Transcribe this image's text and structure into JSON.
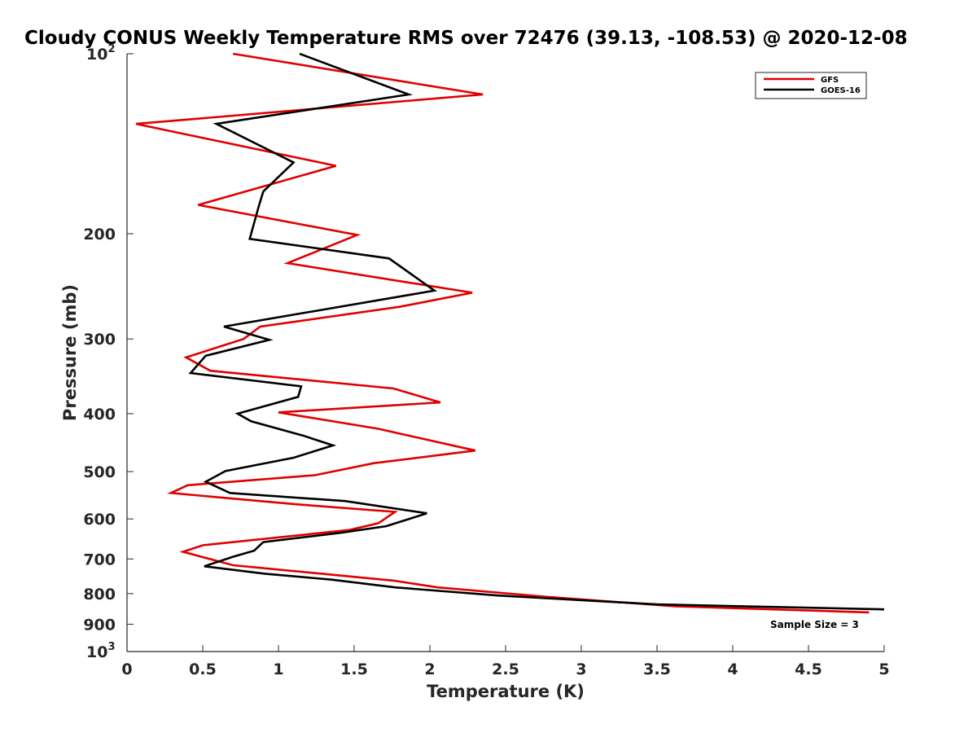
{
  "chart_data": {
    "type": "line",
    "title": "Cloudy CONUS Weekly Temperature RMS over 72476 (39.13, -108.53) @ 2020-12-08",
    "xlabel": "Temperature (K)",
    "ylabel": "Pressure (mb)",
    "xlim": [
      0,
      5
    ],
    "ylim": [
      100,
      1000
    ],
    "y_scale": "log",
    "y_reversed": true,
    "x_ticks": [
      "0",
      "0.5",
      "1",
      "1.5",
      "2",
      "2.5",
      "3",
      "3.5",
      "4",
      "4.5",
      "5"
    ],
    "y_ticks": [
      {
        "value": 100,
        "label": "10",
        "exp": "2"
      },
      {
        "value": 200,
        "label": "200"
      },
      {
        "value": 300,
        "label": "300"
      },
      {
        "value": 400,
        "label": "400"
      },
      {
        "value": 500,
        "label": "500"
      },
      {
        "value": 600,
        "label": "600"
      },
      {
        "value": 700,
        "label": "700"
      },
      {
        "value": 800,
        "label": "800"
      },
      {
        "value": 900,
        "label": "900"
      },
      {
        "value": 1000,
        "label": "10",
        "exp": "3"
      }
    ],
    "grid": false,
    "legend_position": "top-right",
    "annotation": "Sample Size = 3",
    "series": [
      {
        "name": "GFS",
        "color": "#e00000",
        "points": [
          [
            0.7,
            100
          ],
          [
            2.35,
            117
          ],
          [
            0.06,
            131
          ],
          [
            1.38,
            154
          ],
          [
            0.47,
            179
          ],
          [
            1.52,
            201
          ],
          [
            1.06,
            224
          ],
          [
            2.28,
            251
          ],
          [
            1.8,
            265
          ],
          [
            0.88,
            286
          ],
          [
            0.77,
            300
          ],
          [
            0.39,
            322
          ],
          [
            0.55,
            339
          ],
          [
            1.76,
            363
          ],
          [
            2.07,
            383
          ],
          [
            1.0,
            398
          ],
          [
            1.66,
            424
          ],
          [
            2.3,
            461
          ],
          [
            1.63,
            484
          ],
          [
            1.24,
            507
          ],
          [
            0.4,
            527
          ],
          [
            0.29,
            543
          ],
          [
            1.11,
            567
          ],
          [
            1.77,
            584
          ],
          [
            1.66,
            610
          ],
          [
            1.47,
            626
          ],
          [
            0.5,
            664
          ],
          [
            0.37,
            681
          ],
          [
            0.7,
            717
          ],
          [
            1.76,
            761
          ],
          [
            2.05,
            781
          ],
          [
            2.77,
            810
          ],
          [
            3.62,
            840
          ],
          [
            4.9,
            860
          ]
        ]
      },
      {
        "name": "GOES-16",
        "color": "#000000",
        "points": [
          [
            1.14,
            100
          ],
          [
            1.86,
            117
          ],
          [
            0.59,
            131
          ],
          [
            1.1,
            152
          ],
          [
            0.9,
            170
          ],
          [
            0.87,
            180
          ],
          [
            0.81,
            204
          ],
          [
            1.73,
            220
          ],
          [
            2.03,
            249
          ],
          [
            0.64,
            286
          ],
          [
            0.94,
            301
          ],
          [
            0.52,
            320
          ],
          [
            0.42,
            342
          ],
          [
            1.15,
            360
          ],
          [
            1.13,
            375
          ],
          [
            0.73,
            400
          ],
          [
            0.82,
            412
          ],
          [
            1.16,
            435
          ],
          [
            1.36,
            452
          ],
          [
            1.1,
            474
          ],
          [
            0.65,
            499
          ],
          [
            0.52,
            520
          ],
          [
            0.68,
            543
          ],
          [
            1.44,
            560
          ],
          [
            1.98,
            587
          ],
          [
            1.89,
            597
          ],
          [
            1.71,
            617
          ],
          [
            1.41,
            633
          ],
          [
            0.9,
            656
          ],
          [
            0.84,
            678
          ],
          [
            0.7,
            694
          ],
          [
            0.51,
            720
          ],
          [
            0.91,
            741
          ],
          [
            1.35,
            758
          ],
          [
            1.77,
            781
          ],
          [
            2.45,
            806
          ],
          [
            3.5,
            834
          ],
          [
            5.0,
            850
          ]
        ]
      }
    ]
  }
}
